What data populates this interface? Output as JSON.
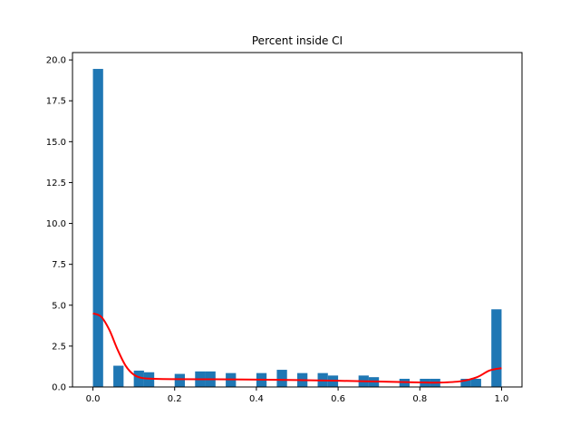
{
  "chart_data": {
    "type": "bar",
    "title": "Percent inside CI",
    "xlabel": "",
    "ylabel": "",
    "xlim": [
      -0.05,
      1.05
    ],
    "ylim": [
      0,
      20.45
    ],
    "x_ticks": [
      "0.0",
      "0.2",
      "0.4",
      "0.6",
      "0.8",
      "1.0"
    ],
    "y_ticks": [
      "0.0",
      "2.5",
      "5.0",
      "7.5",
      "10.0",
      "12.5",
      "15.0",
      "17.5",
      "20.0"
    ],
    "grid": false,
    "legend": "none",
    "colors": {
      "bars": "#1f77b4",
      "curve": "#ff0000"
    },
    "histogram": {
      "bin_width": 0.025,
      "bars": [
        {
          "x": 0.0,
          "value": 19.45
        },
        {
          "x": 0.025,
          "value": 0.0
        },
        {
          "x": 0.05,
          "value": 1.3
        },
        {
          "x": 0.075,
          "value": 0.0
        },
        {
          "x": 0.1,
          "value": 1.0
        },
        {
          "x": 0.125,
          "value": 0.9
        },
        {
          "x": 0.15,
          "value": 0.0
        },
        {
          "x": 0.175,
          "value": 0.0
        },
        {
          "x": 0.2,
          "value": 0.8
        },
        {
          "x": 0.225,
          "value": 0.0
        },
        {
          "x": 0.25,
          "value": 0.95
        },
        {
          "x": 0.275,
          "value": 0.95
        },
        {
          "x": 0.3,
          "value": 0.0
        },
        {
          "x": 0.325,
          "value": 0.85
        },
        {
          "x": 0.35,
          "value": 0.0
        },
        {
          "x": 0.375,
          "value": 0.0
        },
        {
          "x": 0.4,
          "value": 0.85
        },
        {
          "x": 0.425,
          "value": 0.0
        },
        {
          "x": 0.45,
          "value": 1.05
        },
        {
          "x": 0.475,
          "value": 0.0
        },
        {
          "x": 0.5,
          "value": 0.85
        },
        {
          "x": 0.525,
          "value": 0.0
        },
        {
          "x": 0.55,
          "value": 0.85
        },
        {
          "x": 0.575,
          "value": 0.7
        },
        {
          "x": 0.6,
          "value": 0.0
        },
        {
          "x": 0.625,
          "value": 0.0
        },
        {
          "x": 0.65,
          "value": 0.7
        },
        {
          "x": 0.675,
          "value": 0.6
        },
        {
          "x": 0.7,
          "value": 0.0
        },
        {
          "x": 0.725,
          "value": 0.0
        },
        {
          "x": 0.75,
          "value": 0.5
        },
        {
          "x": 0.775,
          "value": 0.0
        },
        {
          "x": 0.8,
          "value": 0.5
        },
        {
          "x": 0.825,
          "value": 0.5
        },
        {
          "x": 0.85,
          "value": 0.0
        },
        {
          "x": 0.875,
          "value": 0.0
        },
        {
          "x": 0.9,
          "value": 0.5
        },
        {
          "x": 0.925,
          "value": 0.5
        },
        {
          "x": 0.95,
          "value": 0.0
        },
        {
          "x": 0.975,
          "value": 4.75
        }
      ]
    },
    "curve": {
      "type": "line",
      "x": [
        0.0,
        0.02,
        0.04,
        0.06,
        0.08,
        0.1,
        0.12,
        0.15,
        0.2,
        0.3,
        0.4,
        0.5,
        0.6,
        0.7,
        0.8,
        0.85,
        0.9,
        0.94,
        0.97,
        1.0
      ],
      "y": [
        4.5,
        4.3,
        3.5,
        2.3,
        1.3,
        0.75,
        0.55,
        0.5,
        0.48,
        0.47,
        0.45,
        0.42,
        0.38,
        0.33,
        0.28,
        0.27,
        0.35,
        0.6,
        1.0,
        1.15
      ]
    }
  }
}
